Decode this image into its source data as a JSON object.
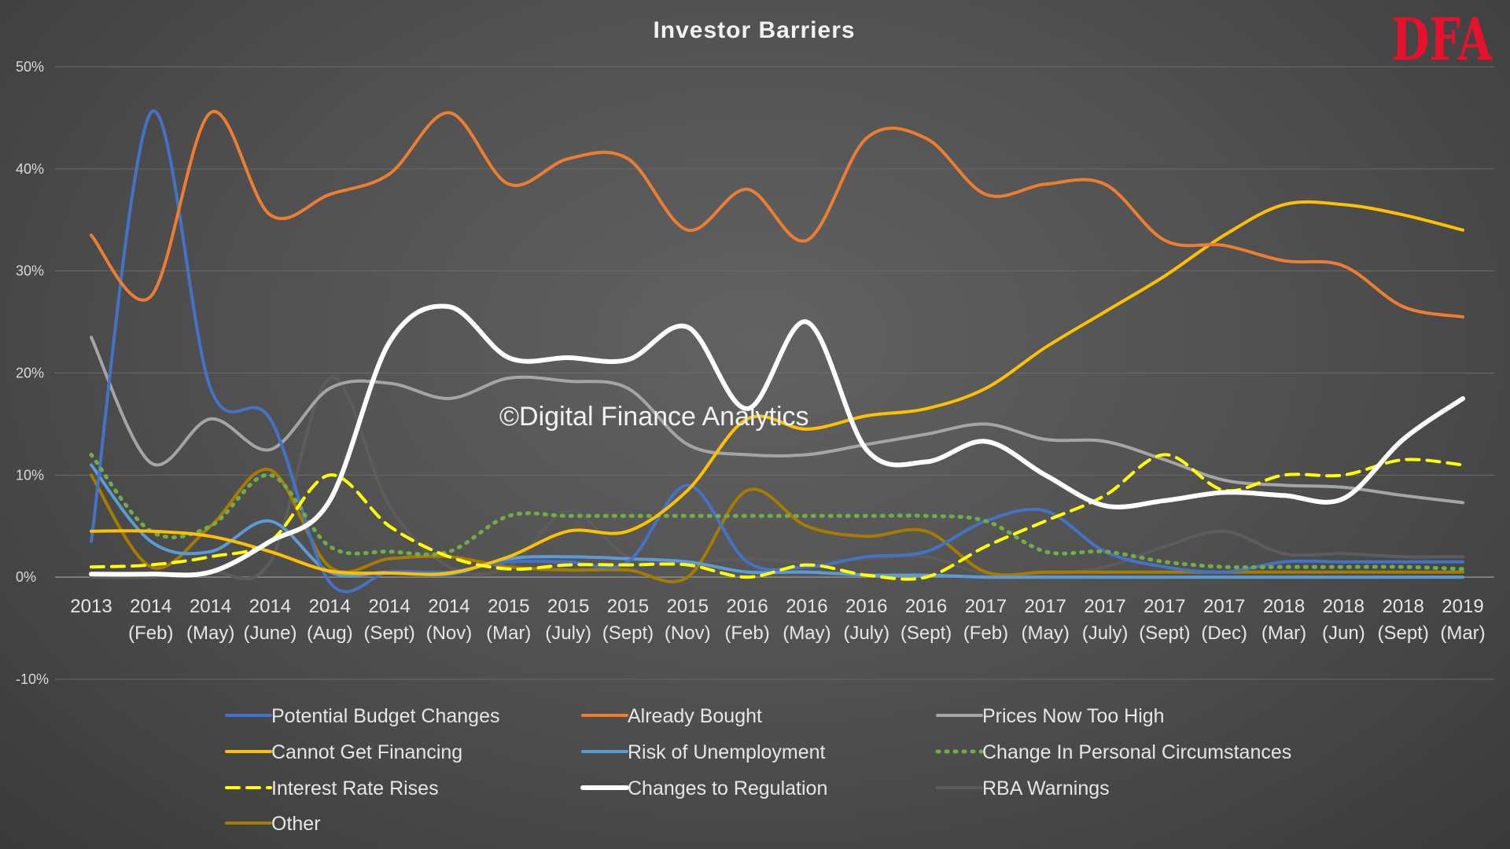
{
  "logo": "DFA",
  "watermark": "©Digital Finance Analytics",
  "chart_data": {
    "type": "line",
    "title": "Investor Barriers",
    "xlabel": "",
    "ylabel": "",
    "ylim": [
      -10,
      50
    ],
    "y_ticks": [
      "-10%",
      "0%",
      "10%",
      "20%",
      "30%",
      "40%",
      "50%"
    ],
    "grid": true,
    "legend_position": "bottom",
    "categories": [
      [
        "2013",
        ""
      ],
      [
        "2014",
        "(Feb)"
      ],
      [
        "2014",
        "(May)"
      ],
      [
        "2014",
        "(June)"
      ],
      [
        "2014",
        "(Aug)"
      ],
      [
        "2014",
        "(Sept)"
      ],
      [
        "2014",
        "(Nov)"
      ],
      [
        "2015",
        "(Mar)"
      ],
      [
        "2015",
        "(July)"
      ],
      [
        "2015",
        "(Sept)"
      ],
      [
        "2015",
        "(Nov)"
      ],
      [
        "2016",
        "(Feb)"
      ],
      [
        "2016",
        "(May)"
      ],
      [
        "2016",
        "(July)"
      ],
      [
        "2016",
        "(Sept)"
      ],
      [
        "2017",
        "(Feb)"
      ],
      [
        "2017",
        "(May)"
      ],
      [
        "2017",
        "(July)"
      ],
      [
        "2017",
        "(Sept)"
      ],
      [
        "2017",
        "(Dec)"
      ],
      [
        "2018",
        "(Mar)"
      ],
      [
        "2018",
        "(Jun)"
      ],
      [
        "2018",
        "(Sept)"
      ],
      [
        "2019",
        "(Mar)"
      ]
    ],
    "series": [
      {
        "name": "Potential Budget Changes",
        "color": "#4472c4",
        "dash": "solid",
        "width": 4,
        "values": [
          3.5,
          45.5,
          18.5,
          15.5,
          -0.5,
          0.5,
          0.5,
          1.5,
          1.5,
          1.5,
          9,
          1.5,
          1,
          2,
          2.5,
          5.5,
          6.5,
          2.5,
          1,
          0.5,
          1.5,
          1.5,
          1.5,
          1.5
        ]
      },
      {
        "name": "Already Bought",
        "color": "#ed7d31",
        "dash": "solid",
        "width": 4,
        "values": [
          33.5,
          27.5,
          45.5,
          35.5,
          37.5,
          39.5,
          45.5,
          38.5,
          41,
          41,
          34,
          38,
          33,
          43,
          43,
          37.5,
          38.5,
          38.5,
          33,
          32.5,
          31,
          30.5,
          26.5,
          25.5
        ]
      },
      {
        "name": "Prices Now Too High",
        "color": "#a5a5a5",
        "dash": "solid",
        "width": 4,
        "values": [
          23.5,
          11.2,
          15.5,
          12.5,
          18.5,
          19,
          17.5,
          19.5,
          19.2,
          18.5,
          13,
          12,
          12,
          13,
          14,
          15,
          13.5,
          13.3,
          11.5,
          9.5,
          9,
          8.8,
          8,
          7.3
        ]
      },
      {
        "name": "Cannot Get Financing",
        "color": "#ffc000",
        "dash": "solid",
        "width": 4,
        "values": [
          4.5,
          4.5,
          4,
          2.5,
          0.6,
          0.4,
          0.4,
          2,
          4.5,
          4.5,
          8.5,
          15.5,
          14.5,
          15.8,
          16.5,
          18.5,
          22.5,
          26,
          29.5,
          33.5,
          36.5,
          36.5,
          35.5,
          34
        ]
      },
      {
        "name": "Risk of Unemployment",
        "color": "#5b9bd5",
        "dash": "solid",
        "width": 4,
        "values": [
          11,
          3.5,
          2.5,
          5.5,
          0.5,
          0.5,
          0.3,
          1.8,
          2,
          1.8,
          1.5,
          0.5,
          0.5,
          0.2,
          0.2,
          0,
          0,
          0,
          0,
          0,
          0,
          0,
          0,
          0
        ]
      },
      {
        "name": "Change In Personal Circumstances",
        "color": "#70ad47",
        "dash": "dotted",
        "width": 5,
        "values": [
          12,
          4.5,
          5,
          10,
          3,
          2.5,
          2.5,
          6,
          6,
          6,
          6,
          6,
          6,
          6,
          6,
          5.5,
          2.5,
          2.5,
          1.5,
          1,
          1,
          1,
          1,
          0.8
        ]
      },
      {
        "name": "Interest Rate Rises",
        "color": "#ffff00",
        "dash": "dashed",
        "width": 4,
        "values": [
          1,
          1.2,
          2,
          3.5,
          10,
          5,
          2,
          0.8,
          1.2,
          1.2,
          1.2,
          0,
          1.2,
          0.2,
          0,
          3,
          5.5,
          8,
          12,
          8.5,
          10,
          10,
          11.5,
          11
        ]
      },
      {
        "name": "Changes to Regulation",
        "color": "#ffffff",
        "dash": "solid",
        "width": 6,
        "values": [
          0.3,
          0.3,
          0.5,
          3.5,
          7.5,
          23,
          26.5,
          21.5,
          21.5,
          21.3,
          24.5,
          16.5,
          25,
          12.5,
          11.3,
          13.3,
          10,
          7,
          7.5,
          8.3,
          8,
          7.7,
          13.5,
          17.5
        ]
      },
      {
        "name": "RBA Warnings",
        "color": "#5c5c5c",
        "dash": "solid",
        "width": 4,
        "values": [
          0,
          0,
          0.5,
          1.5,
          19.5,
          7,
          1,
          1,
          6.5,
          2,
          1.5,
          1.8,
          1.5,
          1.8,
          2,
          0.3,
          0.3,
          1,
          3,
          4.5,
          2.3,
          2.3,
          2,
          2
        ]
      },
      {
        "name": "Other",
        "color": "#a67c00",
        "dash": "solid",
        "width": 4,
        "values": [
          10,
          1,
          5,
          10.5,
          1,
          1.8,
          2,
          1,
          0.7,
          0.7,
          0,
          8.5,
          5,
          4,
          4.5,
          0.5,
          0.5,
          0.5,
          0.5,
          0.5,
          0.5,
          0.5,
          0.5,
          0.5
        ]
      }
    ]
  }
}
